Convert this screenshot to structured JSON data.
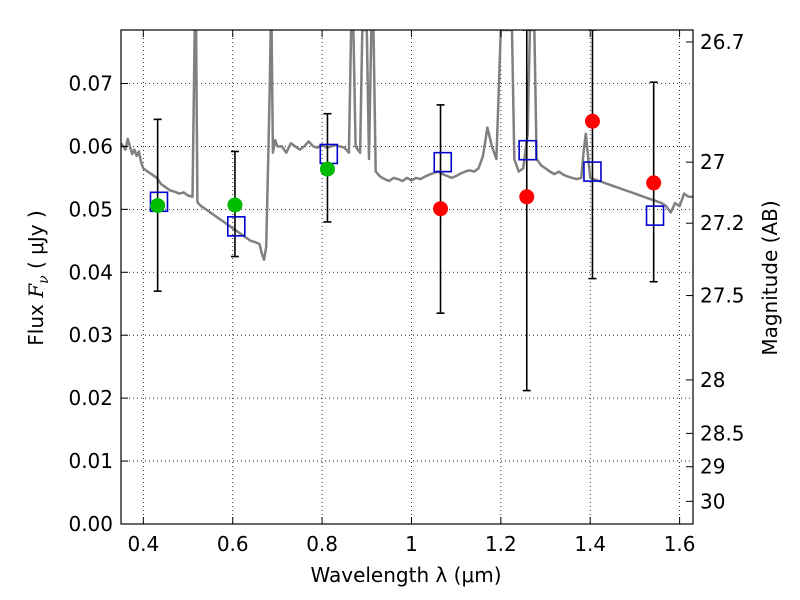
{
  "chart_data": {
    "type": "scatter",
    "xlabel": "Wavelength  λ (μm)",
    "ylabel_left_prefix": "Flux  ",
    "ylabel_left_symbol": "F",
    "ylabel_left_subscript": "ν",
    "ylabel_left_suffix": "  ( μJy )",
    "ylabel_right": "Magnitude (AB)",
    "xlim": [
      0.35,
      1.63
    ],
    "ylim": [
      0.0,
      0.0785
    ],
    "grid": true,
    "x_ticks": [
      0.4,
      0.6,
      0.8,
      1.0,
      1.2,
      1.4,
      1.6
    ],
    "x_tick_labels": [
      "0.4",
      "0.6",
      "0.8",
      "1",
      "1.2",
      "1.4",
      "1.6"
    ],
    "y_ticks": [
      0.0,
      0.01,
      0.02,
      0.03,
      0.04,
      0.05,
      0.06,
      0.07
    ],
    "y_tick_labels": [
      "0.00",
      "0.01",
      "0.02",
      "0.03",
      "0.04",
      "0.05",
      "0.06",
      "0.07"
    ],
    "right_ticks": [
      {
        "label": "26.7",
        "flux": 0.0766
      },
      {
        "label": "27",
        "flux": 0.0575
      },
      {
        "label": "27.2",
        "flux": 0.0478
      },
      {
        "label": "27.5",
        "flux": 0.0363
      },
      {
        "label": "28",
        "flux": 0.0229
      },
      {
        "label": "28.5",
        "flux": 0.0144
      },
      {
        "label": "29",
        "flux": 0.0091
      },
      {
        "label": "30",
        "flux": 0.0036
      }
    ],
    "colors": {
      "model_line": "#808080",
      "model_points": "#0000cc",
      "green_points": "#00bb00",
      "red_points": "#ff0000",
      "error_bars": "#000000",
      "grid": "#000000"
    },
    "series": [
      {
        "name": "model-spectrum",
        "type": "line",
        "x": [
          0.35,
          0.36,
          0.365,
          0.37,
          0.375,
          0.38,
          0.385,
          0.39,
          0.395,
          0.4,
          0.41,
          0.42,
          0.43,
          0.44,
          0.45,
          0.46,
          0.47,
          0.48,
          0.49,
          0.5,
          0.51,
          0.515,
          0.518,
          0.521,
          0.525,
          0.53,
          0.54,
          0.55,
          0.56,
          0.57,
          0.58,
          0.59,
          0.6,
          0.61,
          0.62,
          0.63,
          0.64,
          0.65,
          0.66,
          0.665,
          0.67,
          0.675,
          0.68,
          0.683,
          0.685,
          0.687,
          0.69,
          0.695,
          0.7,
          0.71,
          0.72,
          0.73,
          0.74,
          0.75,
          0.76,
          0.77,
          0.78,
          0.79,
          0.8,
          0.81,
          0.82,
          0.83,
          0.84,
          0.85,
          0.86,
          0.865,
          0.87,
          0.875,
          0.88,
          0.885,
          0.89,
          0.893,
          0.896,
          0.9,
          0.905,
          0.91,
          0.915,
          0.92,
          0.93,
          0.94,
          0.95,
          0.96,
          0.97,
          0.98,
          0.99,
          1.0,
          1.01,
          1.02,
          1.03,
          1.04,
          1.05,
          1.06,
          1.07,
          1.08,
          1.09,
          1.1,
          1.11,
          1.12,
          1.13,
          1.14,
          1.15,
          1.16,
          1.17,
          1.18,
          1.19,
          1.2,
          1.205,
          1.21,
          1.215,
          1.22,
          1.225,
          1.23,
          1.24,
          1.25,
          1.26,
          1.265,
          1.27,
          1.275,
          1.28,
          1.29,
          1.3,
          1.31,
          1.32,
          1.33,
          1.34,
          1.35,
          1.36,
          1.37,
          1.38,
          1.385,
          1.39,
          1.4,
          1.42,
          1.44,
          1.46,
          1.48,
          1.5,
          1.52,
          1.54,
          1.56,
          1.57,
          1.58,
          1.59,
          1.6,
          1.61,
          1.62,
          1.63
        ],
        "y": [
          0.0605,
          0.0595,
          0.0612,
          0.06,
          0.0588,
          0.0595,
          0.0585,
          0.0592,
          0.0575,
          0.0565,
          0.056,
          0.0555,
          0.055,
          0.054,
          0.0535,
          0.053,
          0.0528,
          0.0525,
          0.0527,
          0.0522,
          0.052,
          0.0785,
          0.0785,
          0.0512,
          0.0508,
          0.0505,
          0.05,
          0.0495,
          0.049,
          0.0485,
          0.048,
          0.0475,
          0.047,
          0.0465,
          0.046,
          0.0455,
          0.045,
          0.0448,
          0.0445,
          0.043,
          0.042,
          0.044,
          0.06,
          0.07,
          0.0785,
          0.0785,
          0.059,
          0.061,
          0.06,
          0.06,
          0.059,
          0.0605,
          0.06,
          0.0595,
          0.06,
          0.0608,
          0.06,
          0.0598,
          0.0603,
          0.0598,
          0.06,
          0.0602,
          0.06,
          0.0598,
          0.059,
          0.0785,
          0.0785,
          0.06,
          0.0595,
          0.059,
          0.0785,
          0.0785,
          0.0785,
          0.0785,
          0.058,
          0.0785,
          0.0785,
          0.056,
          0.0552,
          0.0548,
          0.0545,
          0.055,
          0.0548,
          0.0545,
          0.055,
          0.0546,
          0.055,
          0.0548,
          0.0552,
          0.0555,
          0.0558,
          0.056,
          0.0556,
          0.0553,
          0.055,
          0.0553,
          0.0557,
          0.056,
          0.0562,
          0.056,
          0.0565,
          0.0585,
          0.063,
          0.06,
          0.058,
          0.0785,
          0.0785,
          0.0785,
          0.0785,
          0.0785,
          0.0785,
          0.058,
          0.056,
          0.0565,
          0.062,
          0.0785,
          0.0785,
          0.0785,
          0.058,
          0.057,
          0.0565,
          0.056,
          0.0556,
          0.056,
          0.0555,
          0.0552,
          0.055,
          0.0548,
          0.055,
          0.059,
          0.062,
          0.055,
          0.0545,
          0.054,
          0.0535,
          0.053,
          0.0525,
          0.052,
          0.0515,
          0.051,
          0.0505,
          0.0495,
          0.051,
          0.0505,
          0.0525,
          0.052,
          0.052
        ]
      },
      {
        "name": "model-fluxes",
        "type": "scatter",
        "marker": "open-square",
        "x": [
          0.435,
          0.608,
          0.815,
          1.07,
          1.26,
          1.405,
          1.545
        ],
        "y": [
          0.0512,
          0.0473,
          0.0588,
          0.0575,
          0.0594,
          0.056,
          0.049
        ]
      },
      {
        "name": "optical-detections",
        "type": "scatter",
        "marker": "filled-circle",
        "color": "green",
        "x": [
          0.432,
          0.605,
          0.812
        ],
        "y": [
          0.0506,
          0.0507,
          0.0564
        ],
        "yerr_low": [
          0.037,
          0.0425,
          0.048
        ],
        "yerr_high": [
          0.0643,
          0.0592,
          0.0652
        ]
      },
      {
        "name": "nir-detections",
        "type": "scatter",
        "marker": "filled-circle",
        "color": "red",
        "x": [
          1.065,
          1.258,
          1.405,
          1.542
        ],
        "y": [
          0.0501,
          0.052,
          0.064,
          0.0542
        ],
        "yerr_low": [
          0.0335,
          0.0212,
          0.039,
          0.0385
        ],
        "yerr_high": [
          0.0666,
          0.0785,
          0.0785,
          0.0702
        ]
      }
    ]
  }
}
